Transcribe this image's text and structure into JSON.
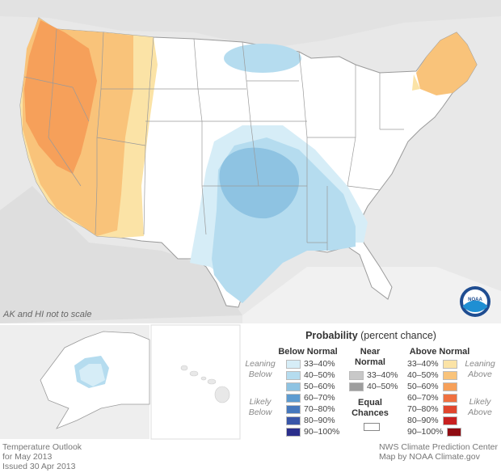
{
  "map": {
    "inset_note": "AK and HI not to scale"
  },
  "legend": {
    "title_bold": "Probability",
    "title_rest": " (percent chance)",
    "below_header": "Below Normal",
    "near_header_1": "Near",
    "near_header_2": "Normal",
    "above_header": "Above Normal",
    "leaning_below_1": "Leaning",
    "leaning_below_2": "Below",
    "likely_below_1": "Likely",
    "likely_below_2": "Below",
    "leaning_above_1": "Leaning",
    "leaning_above_2": "Above",
    "likely_above_1": "Likely",
    "likely_above_2": "Above",
    "equal_1": "Equal",
    "equal_2": "Chances",
    "below_items": [
      {
        "label": "33–40%",
        "color": "#d6edf7"
      },
      {
        "label": "40–50%",
        "color": "#b5dcef"
      },
      {
        "label": "50–60%",
        "color": "#8ec3e2"
      },
      {
        "label": "60–70%",
        "color": "#5d9bd0"
      },
      {
        "label": "70–80%",
        "color": "#4678bd"
      },
      {
        "label": "80–90%",
        "color": "#3956a8"
      },
      {
        "label": "90–100%",
        "color": "#2b2f8c"
      }
    ],
    "near_items": [
      {
        "label": "33–40%",
        "color": "#c8c8c8"
      },
      {
        "label": "40–50%",
        "color": "#9e9e9e"
      }
    ],
    "above_items": [
      {
        "label": "33–40%",
        "color": "#fbe3a6"
      },
      {
        "label": "40–50%",
        "color": "#f9c37a"
      },
      {
        "label": "50–60%",
        "color": "#f6a05a"
      },
      {
        "label": "60–70%",
        "color": "#ef7040"
      },
      {
        "label": "70–80%",
        "color": "#e0462e"
      },
      {
        "label": "80–90%",
        "color": "#c82020"
      },
      {
        "label": "90–100%",
        "color": "#8f0b12"
      }
    ]
  },
  "footer": {
    "left_1": "Temperature Outlook",
    "left_2": "for May 2013",
    "left_3": "Issued 30 Apr 2013",
    "right_1": "NWS Climate Prediction Center",
    "right_2": "Map by NOAA Climate.gov"
  },
  "logo": {
    "text": "NOAA"
  }
}
